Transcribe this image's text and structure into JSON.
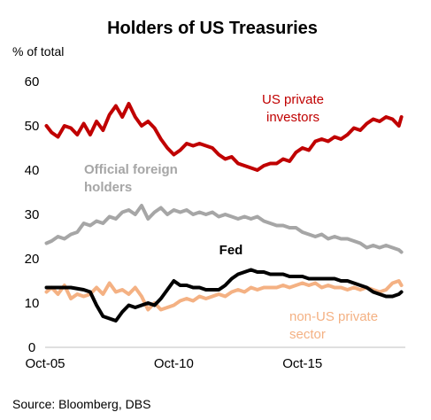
{
  "chart_data": {
    "type": "line",
    "title": "Holders of US Treasuries",
    "ylabel": "% of total",
    "ylim": [
      0,
      60
    ],
    "y_ticks": [
      "0",
      "10",
      "20",
      "30",
      "40",
      "50",
      "60"
    ],
    "x_tick_labels": [
      "Oct-05",
      "Oct-10",
      "Oct-15"
    ],
    "grid": false,
    "legend": "inline labels",
    "source": "Source: Bloomberg, DBS",
    "series": [
      {
        "name": "US private investors",
        "label_lines": [
          "US private",
          "investors"
        ],
        "color": "#c00000",
        "points": [
          [
            2005.8,
            50.0
          ],
          [
            2006.0,
            48.5
          ],
          [
            2006.25,
            47.5
          ],
          [
            2006.5,
            50.0
          ],
          [
            2006.75,
            49.5
          ],
          [
            2007.0,
            48.0
          ],
          [
            2007.25,
            50.5
          ],
          [
            2007.5,
            48.0
          ],
          [
            2007.75,
            51.0
          ],
          [
            2008.0,
            49.0
          ],
          [
            2008.25,
            52.5
          ],
          [
            2008.5,
            54.5
          ],
          [
            2008.75,
            52.0
          ],
          [
            2009.0,
            55.0
          ],
          [
            2009.25,
            52.0
          ],
          [
            2009.5,
            50.0
          ],
          [
            2009.75,
            51.0
          ],
          [
            2010.0,
            49.5
          ],
          [
            2010.25,
            47.0
          ],
          [
            2010.5,
            45.0
          ],
          [
            2010.75,
            43.5
          ],
          [
            2011.0,
            44.5
          ],
          [
            2011.25,
            46.0
          ],
          [
            2011.5,
            45.5
          ],
          [
            2011.75,
            46.0
          ],
          [
            2012.0,
            45.5
          ],
          [
            2012.25,
            45.0
          ],
          [
            2012.5,
            43.5
          ],
          [
            2012.75,
            42.5
          ],
          [
            2013.0,
            43.0
          ],
          [
            2013.25,
            41.5
          ],
          [
            2013.5,
            41.0
          ],
          [
            2013.75,
            40.5
          ],
          [
            2014.0,
            40.0
          ],
          [
            2014.25,
            41.0
          ],
          [
            2014.5,
            41.5
          ],
          [
            2014.75,
            41.5
          ],
          [
            2015.0,
            42.5
          ],
          [
            2015.25,
            42.0
          ],
          [
            2015.5,
            44.0
          ],
          [
            2015.75,
            45.0
          ],
          [
            2016.0,
            44.5
          ],
          [
            2016.25,
            46.5
          ],
          [
            2016.5,
            47.0
          ],
          [
            2016.75,
            46.5
          ],
          [
            2017.0,
            47.5
          ],
          [
            2017.25,
            47.0
          ],
          [
            2017.5,
            48.0
          ],
          [
            2017.75,
            49.5
          ],
          [
            2018.0,
            49.0
          ],
          [
            2018.25,
            50.5
          ],
          [
            2018.5,
            51.5
          ],
          [
            2018.75,
            51.0
          ],
          [
            2019.0,
            52.0
          ],
          [
            2019.25,
            51.5
          ],
          [
            2019.5,
            50.0
          ],
          [
            2019.6,
            52.0
          ]
        ]
      },
      {
        "name": "Official foreign holders",
        "label_lines": [
          "Official  foreign",
          "holders"
        ],
        "color": "#a6a6a6",
        "points": [
          [
            2005.8,
            23.5
          ],
          [
            2006.0,
            24.0
          ],
          [
            2006.25,
            25.0
          ],
          [
            2006.5,
            24.5
          ],
          [
            2006.75,
            25.5
          ],
          [
            2007.0,
            26.0
          ],
          [
            2007.25,
            28.0
          ],
          [
            2007.5,
            27.5
          ],
          [
            2007.75,
            28.5
          ],
          [
            2008.0,
            28.0
          ],
          [
            2008.25,
            29.5
          ],
          [
            2008.5,
            29.0
          ],
          [
            2008.75,
            30.5
          ],
          [
            2009.0,
            31.0
          ],
          [
            2009.25,
            30.0
          ],
          [
            2009.5,
            32.0
          ],
          [
            2009.75,
            29.0
          ],
          [
            2010.0,
            30.5
          ],
          [
            2010.25,
            31.5
          ],
          [
            2010.5,
            30.0
          ],
          [
            2010.75,
            31.0
          ],
          [
            2011.0,
            30.5
          ],
          [
            2011.25,
            31.0
          ],
          [
            2011.5,
            30.0
          ],
          [
            2011.75,
            30.5
          ],
          [
            2012.0,
            30.0
          ],
          [
            2012.25,
            30.5
          ],
          [
            2012.5,
            29.5
          ],
          [
            2012.75,
            30.0
          ],
          [
            2013.0,
            29.5
          ],
          [
            2013.25,
            29.0
          ],
          [
            2013.5,
            29.5
          ],
          [
            2013.75,
            29.0
          ],
          [
            2014.0,
            29.5
          ],
          [
            2014.25,
            28.5
          ],
          [
            2014.5,
            28.0
          ],
          [
            2014.75,
            27.5
          ],
          [
            2015.0,
            27.5
          ],
          [
            2015.25,
            27.0
          ],
          [
            2015.5,
            27.0
          ],
          [
            2015.75,
            26.0
          ],
          [
            2016.0,
            25.5
          ],
          [
            2016.25,
            25.0
          ],
          [
            2016.5,
            25.5
          ],
          [
            2016.75,
            24.5
          ],
          [
            2017.0,
            25.0
          ],
          [
            2017.25,
            24.5
          ],
          [
            2017.5,
            24.5
          ],
          [
            2017.75,
            24.0
          ],
          [
            2018.0,
            23.5
          ],
          [
            2018.25,
            22.5
          ],
          [
            2018.5,
            23.0
          ],
          [
            2018.75,
            22.5
          ],
          [
            2019.0,
            23.0
          ],
          [
            2019.25,
            22.5
          ],
          [
            2019.5,
            22.0
          ],
          [
            2019.6,
            21.5
          ]
        ]
      },
      {
        "name": "Fed",
        "label_lines": [
          "Fed"
        ],
        "color": "#000000",
        "points": [
          [
            2005.8,
            13.5
          ],
          [
            2006.25,
            13.5
          ],
          [
            2006.75,
            13.5
          ],
          [
            2007.25,
            13.0
          ],
          [
            2007.5,
            12.5
          ],
          [
            2007.75,
            9.5
          ],
          [
            2008.0,
            7.0
          ],
          [
            2008.25,
            6.5
          ],
          [
            2008.5,
            6.0
          ],
          [
            2008.75,
            8.0
          ],
          [
            2009.0,
            9.5
          ],
          [
            2009.25,
            9.0
          ],
          [
            2009.5,
            9.5
          ],
          [
            2009.75,
            10.0
          ],
          [
            2010.0,
            9.5
          ],
          [
            2010.25,
            11.0
          ],
          [
            2010.5,
            13.0
          ],
          [
            2010.75,
            15.0
          ],
          [
            2011.0,
            14.0
          ],
          [
            2011.25,
            14.0
          ],
          [
            2011.5,
            13.5
          ],
          [
            2011.75,
            13.5
          ],
          [
            2012.0,
            13.0
          ],
          [
            2012.25,
            13.0
          ],
          [
            2012.5,
            13.0
          ],
          [
            2012.75,
            14.0
          ],
          [
            2013.0,
            15.5
          ],
          [
            2013.25,
            16.5
          ],
          [
            2013.5,
            17.0
          ],
          [
            2013.75,
            17.5
          ],
          [
            2014.0,
            17.0
          ],
          [
            2014.25,
            17.0
          ],
          [
            2014.5,
            16.5
          ],
          [
            2014.75,
            16.5
          ],
          [
            2015.0,
            16.5
          ],
          [
            2015.25,
            16.0
          ],
          [
            2015.5,
            16.0
          ],
          [
            2015.75,
            16.0
          ],
          [
            2016.0,
            15.5
          ],
          [
            2016.25,
            15.5
          ],
          [
            2016.5,
            15.5
          ],
          [
            2016.75,
            15.5
          ],
          [
            2017.0,
            15.5
          ],
          [
            2017.25,
            15.0
          ],
          [
            2017.5,
            15.0
          ],
          [
            2017.75,
            14.5
          ],
          [
            2018.0,
            14.0
          ],
          [
            2018.25,
            13.5
          ],
          [
            2018.5,
            12.5
          ],
          [
            2018.75,
            12.0
          ],
          [
            2019.0,
            11.5
          ],
          [
            2019.25,
            11.5
          ],
          [
            2019.5,
            12.0
          ],
          [
            2019.6,
            12.5
          ]
        ]
      },
      {
        "name": "non-US private sector",
        "label_lines": [
          "non-US private",
          "sector"
        ],
        "color": "#f4b183",
        "points": [
          [
            2005.8,
            12.5
          ],
          [
            2006.0,
            13.5
          ],
          [
            2006.25,
            12.0
          ],
          [
            2006.5,
            14.0
          ],
          [
            2006.75,
            11.0
          ],
          [
            2007.0,
            12.0
          ],
          [
            2007.25,
            11.5
          ],
          [
            2007.5,
            12.0
          ],
          [
            2007.75,
            13.5
          ],
          [
            2008.0,
            12.0
          ],
          [
            2008.25,
            14.5
          ],
          [
            2008.5,
            12.5
          ],
          [
            2008.75,
            13.0
          ],
          [
            2009.0,
            12.0
          ],
          [
            2009.25,
            13.5
          ],
          [
            2009.5,
            11.5
          ],
          [
            2009.75,
            8.5
          ],
          [
            2010.0,
            10.0
          ],
          [
            2010.25,
            8.5
          ],
          [
            2010.5,
            9.0
          ],
          [
            2010.75,
            9.5
          ],
          [
            2011.0,
            10.5
          ],
          [
            2011.25,
            11.0
          ],
          [
            2011.5,
            10.5
          ],
          [
            2011.75,
            11.5
          ],
          [
            2012.0,
            11.0
          ],
          [
            2012.25,
            11.5
          ],
          [
            2012.5,
            12.0
          ],
          [
            2012.75,
            11.5
          ],
          [
            2013.0,
            12.5
          ],
          [
            2013.25,
            13.0
          ],
          [
            2013.5,
            12.5
          ],
          [
            2013.75,
            13.5
          ],
          [
            2014.0,
            13.0
          ],
          [
            2014.25,
            13.5
          ],
          [
            2014.5,
            13.5
          ],
          [
            2014.75,
            13.5
          ],
          [
            2015.0,
            14.0
          ],
          [
            2015.25,
            13.5
          ],
          [
            2015.5,
            14.0
          ],
          [
            2015.75,
            14.5
          ],
          [
            2016.0,
            14.0
          ],
          [
            2016.25,
            14.5
          ],
          [
            2016.5,
            13.5
          ],
          [
            2016.75,
            14.0
          ],
          [
            2017.0,
            13.5
          ],
          [
            2017.25,
            13.5
          ],
          [
            2017.5,
            13.0
          ],
          [
            2017.75,
            13.5
          ],
          [
            2018.0,
            13.0
          ],
          [
            2018.25,
            13.5
          ],
          [
            2018.5,
            13.0
          ],
          [
            2018.75,
            12.5
          ],
          [
            2019.0,
            13.0
          ],
          [
            2019.25,
            14.5
          ],
          [
            2019.5,
            15.0
          ],
          [
            2019.6,
            14.0
          ]
        ]
      }
    ]
  }
}
